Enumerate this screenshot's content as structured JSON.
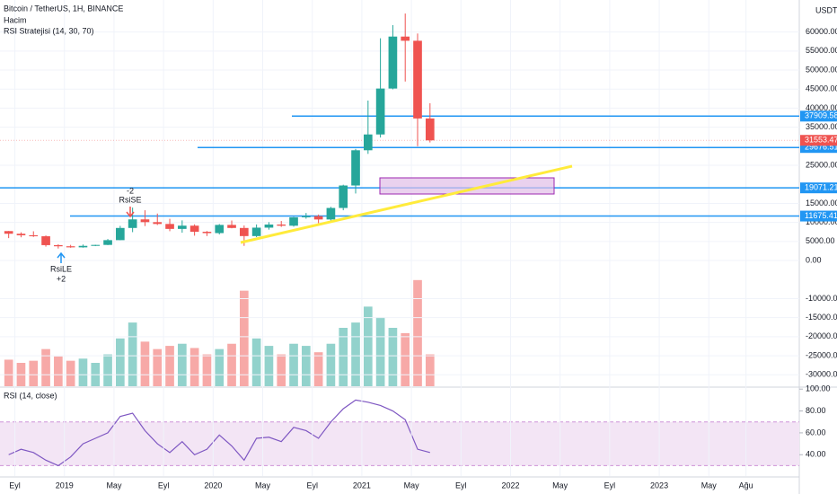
{
  "chart_data": [
    {
      "type": "candlestick",
      "title": "Bitcoin / TetherUS, 1H, BINANCE",
      "indicators": [
        "Hacim",
        "RSI Stratejisi (14, 30, 70)"
      ],
      "currency": "USDT",
      "x": [
        0,
        1,
        2,
        3,
        4,
        5,
        6,
        7,
        8,
        9,
        10,
        11,
        12,
        13,
        14,
        15,
        16,
        17,
        18,
        19,
        20,
        21,
        22,
        23,
        24,
        25,
        26,
        27,
        28,
        29,
        30,
        31,
        32,
        33,
        34
      ],
      "open": [
        7730,
        7030,
        6625,
        6370,
        4040,
        3740,
        3460,
        3850,
        4100,
        5350,
        8550,
        10800,
        10080,
        9600,
        8300,
        9150,
        7550,
        7200,
        9350,
        8550,
        6420,
        8630,
        9450,
        9140,
        11350,
        11650,
        10780,
        13800,
        19700,
        28950,
        33100,
        45150,
        58800,
        57700,
        37300
      ],
      "high": [
        7750,
        7400,
        7680,
        6590,
        4250,
        4110,
        4200,
        4140,
        5650,
        9100,
        13900,
        13200,
        12330,
        10950,
        10540,
        9500,
        7750,
        9580,
        10500,
        9200,
        9470,
        10080,
        10380,
        11450,
        12480,
        12070,
        14100,
        19900,
        29300,
        42000,
        58350,
        61800,
        64850,
        59600,
        41300
      ],
      "low": [
        5880,
        6100,
        6200,
        3650,
        3150,
        3350,
        3370,
        3780,
        4050,
        5330,
        7450,
        9050,
        9320,
        7700,
        7300,
        6520,
        6430,
        6850,
        8450,
        3850,
        6150,
        8110,
        8830,
        8900,
        10980,
        9820,
        10370,
        13200,
        17600,
        28000,
        32300,
        44950,
        47000,
        30000,
        31000
      ],
      "close": [
        7030,
        6625,
        6370,
        4040,
        3740,
        3460,
        3850,
        4100,
        5350,
        8550,
        10800,
        10080,
        9600,
        8300,
        9150,
        7550,
        7200,
        9350,
        8550,
        6420,
        8630,
        9450,
        9140,
        11350,
        11650,
        10780,
        13800,
        19700,
        28950,
        33100,
        45150,
        58800,
        57700,
        37300,
        31553.47
      ],
      "up_color": "#26a69a",
      "down_color": "#ef5350",
      "xlim": [
        -0.2,
        64.3
      ],
      "ylim": [
        -33000,
        68400
      ],
      "xticks": [
        {
          "value": 1,
          "label": "Eyl"
        },
        {
          "value": 5,
          "label": "2019"
        },
        {
          "value": 9,
          "label": "May"
        },
        {
          "value": 13,
          "label": "Eyl"
        },
        {
          "value": 17,
          "label": "2020"
        },
        {
          "value": 21,
          "label": "May"
        },
        {
          "value": 25,
          "label": "Eyl"
        },
        {
          "value": 29,
          "label": "2021"
        },
        {
          "value": 33,
          "label": "May"
        },
        {
          "value": 37,
          "label": "Eyl"
        },
        {
          "value": 41,
          "label": "2022"
        },
        {
          "value": 45,
          "label": "May"
        },
        {
          "value": 49,
          "label": "Eyl"
        },
        {
          "value": 53,
          "label": "2023"
        },
        {
          "value": 57,
          "label": "May"
        },
        {
          "value": 60,
          "label": "Ağu"
        }
      ],
      "yticks": [
        {
          "value": 60000,
          "label": "60000.00"
        },
        {
          "value": 55000,
          "label": "55000.00"
        },
        {
          "value": 50000,
          "label": "50000.00"
        },
        {
          "value": 45000,
          "label": "45000.00"
        },
        {
          "value": 40000,
          "label": "40000.00"
        },
        {
          "value": 35000,
          "label": "35000.00"
        },
        {
          "value": 25000,
          "label": "25000.00"
        },
        {
          "value": 15000,
          "label": "15000.00"
        },
        {
          "value": 10000,
          "label": "10000.00"
        },
        {
          "value": 5000,
          "label": "5000.00"
        },
        {
          "value": 0,
          "label": "0.00"
        },
        {
          "value": -10000,
          "label": "-10000.00"
        },
        {
          "value": -15000,
          "label": "-15000.00"
        },
        {
          "value": -20000,
          "label": "-20000.00"
        },
        {
          "value": -25000,
          "label": "-25000.00"
        },
        {
          "value": -30000,
          "label": "-30000.00"
        }
      ],
      "levels": [
        37909.58,
        29676.51,
        19071.21,
        11675.41
      ],
      "last_price": 31553.47,
      "signals": [
        {
          "text": "-2",
          "name": "RsiSE"
        },
        {
          "text": "+2",
          "name": "RsiLE"
        }
      ]
    },
    {
      "type": "bar",
      "ylim": [
        0,
        110
      ],
      "values": [
        25,
        22,
        24,
        35,
        28,
        24,
        26,
        22,
        30,
        45,
        60,
        42,
        35,
        38,
        40,
        36,
        30,
        35,
        40,
        90,
        45,
        38,
        30,
        40,
        38,
        32,
        40,
        55,
        60,
        75,
        65,
        55,
        50,
        100,
        30
      ]
    },
    {
      "type": "line",
      "title": "RSI (14, close)",
      "ylim": [
        20.5,
        101
      ],
      "band": [
        30,
        70
      ],
      "values": [
        40,
        45,
        42,
        35,
        30,
        38,
        50,
        55,
        60,
        75,
        78,
        62,
        50,
        42,
        52,
        40,
        45,
        58,
        48,
        35,
        55,
        56,
        52,
        65,
        62,
        55,
        70,
        82,
        90,
        88,
        85,
        80,
        72,
        45,
        42
      ],
      "yticks": [
        {
          "value": 100,
          "label": "100.00"
        },
        {
          "value": 80,
          "label": "80.00"
        },
        {
          "value": 60,
          "label": "60.00"
        },
        {
          "value": 40,
          "label": "40.00"
        }
      ]
    }
  ]
}
